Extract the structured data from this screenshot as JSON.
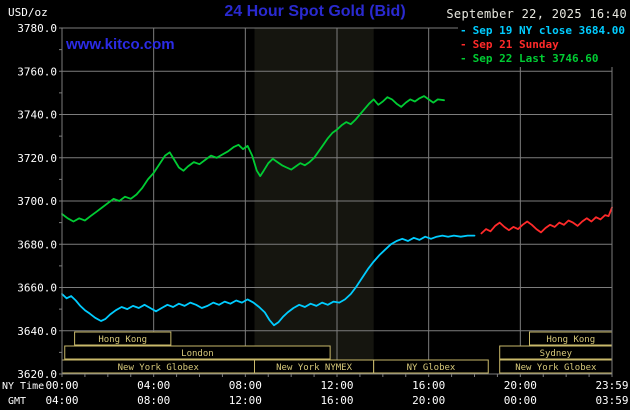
{
  "header": {
    "units": "USD/oz",
    "title": "24 Hour Spot Gold (Bid)",
    "datetime": "September 22, 2025 16:40",
    "watermark": "www.kitco.com"
  },
  "legend": {
    "marker": "-",
    "items": [
      {
        "label": "Sep 19 NY close 3684.00",
        "color": "#00ccff"
      },
      {
        "label": "Sep 21 Sunday",
        "color": "#ff2a2a"
      },
      {
        "label": "Sep 22 Last 3746.60",
        "color": "#00cc33"
      }
    ]
  },
  "colors": {
    "background": "#000000",
    "grid": "#7d7d7d",
    "axis_text": "#ffffff",
    "session_border": "#c9b96a",
    "session_text": "#d6c87a",
    "band": "#15150f"
  },
  "chart_data": {
    "type": "line",
    "title": "24 Hour Spot Gold (Bid)",
    "ylabel": "USD/oz",
    "ylim": [
      3620,
      3780
    ],
    "xlim_hours": [
      0,
      24
    ],
    "prev_ny_close": 3684.0,
    "last": 3746.6,
    "y_ticks": [
      3780,
      3760,
      3740,
      3720,
      3700,
      3680,
      3660,
      3640,
      3620
    ],
    "x_axis": {
      "ny_label": "NY Time",
      "gmt_label": "GMT",
      "ny_ticks": [
        {
          "hour": 0,
          "label": "00:00"
        },
        {
          "hour": 4,
          "label": "04:00"
        },
        {
          "hour": 8,
          "label": "08:00"
        },
        {
          "hour": 12,
          "label": "12:00"
        },
        {
          "hour": 16,
          "label": "16:00"
        },
        {
          "hour": 20,
          "label": "20:00"
        },
        {
          "hour": 24,
          "label": "23:59"
        }
      ],
      "gmt_ticks": [
        {
          "hour": 0,
          "label": "04:00"
        },
        {
          "hour": 4,
          "label": "08:00"
        },
        {
          "hour": 8,
          "label": "12:00"
        },
        {
          "hour": 12,
          "label": "16:00"
        },
        {
          "hour": 16,
          "label": "20:00"
        },
        {
          "hour": 20,
          "label": "00:00"
        },
        {
          "hour": 24,
          "label": "03:59"
        }
      ]
    },
    "nymex_band": {
      "start": 8.4,
      "end": 13.6
    },
    "sessions": [
      {
        "row": 0,
        "label": "Hong Kong",
        "start": 0.55,
        "end": 4.75
      },
      {
        "row": 0,
        "label": "Hong Kong",
        "start": 20.4,
        "end": 24
      },
      {
        "row": 1,
        "label": "London",
        "start": 0.12,
        "end": 11.7
      },
      {
        "row": 1,
        "label": "Sydney",
        "start": 19.1,
        "end": 24
      },
      {
        "row": 2,
        "label": "New York Globex",
        "start": 0,
        "end": 8.4
      },
      {
        "row": 2,
        "label": "New York NYMEX",
        "start": 8.4,
        "end": 13.6
      },
      {
        "row": 2,
        "label": "NY Globex",
        "start": 13.6,
        "end": 18.6
      },
      {
        "row": 2,
        "label": "New York Globex",
        "start": 19.1,
        "end": 24
      }
    ],
    "series": [
      {
        "id": "sep19-close",
        "name": "Sep 19 NY close",
        "color": "#00ccff",
        "points": [
          [
            0,
            3657
          ],
          [
            0.2,
            3655
          ],
          [
            0.4,
            3656
          ],
          [
            0.6,
            3654
          ],
          [
            0.8,
            3651.5
          ],
          [
            1,
            3649.5
          ],
          [
            1.2,
            3648
          ],
          [
            1.45,
            3646
          ],
          [
            1.7,
            3644.5
          ],
          [
            1.9,
            3645.5
          ],
          [
            2.1,
            3647.5
          ],
          [
            2.35,
            3649.5
          ],
          [
            2.6,
            3651
          ],
          [
            2.85,
            3650
          ],
          [
            3.1,
            3651.5
          ],
          [
            3.35,
            3650.5
          ],
          [
            3.6,
            3652
          ],
          [
            3.85,
            3650.5
          ],
          [
            4.1,
            3649
          ],
          [
            4.35,
            3650.5
          ],
          [
            4.6,
            3652
          ],
          [
            4.85,
            3651
          ],
          [
            5.1,
            3652.5
          ],
          [
            5.35,
            3651.5
          ],
          [
            5.6,
            3653
          ],
          [
            5.85,
            3652
          ],
          [
            6.1,
            3650.5
          ],
          [
            6.35,
            3651.5
          ],
          [
            6.6,
            3653
          ],
          [
            6.85,
            3652
          ],
          [
            7.1,
            3653.5
          ],
          [
            7.35,
            3652.5
          ],
          [
            7.6,
            3654
          ],
          [
            7.85,
            3653
          ],
          [
            8.1,
            3654.5
          ],
          [
            8.35,
            3653
          ],
          [
            8.6,
            3651
          ],
          [
            8.85,
            3648.5
          ],
          [
            9.05,
            3645
          ],
          [
            9.25,
            3642.5
          ],
          [
            9.45,
            3644
          ],
          [
            9.65,
            3646.5
          ],
          [
            9.85,
            3648.5
          ],
          [
            10.1,
            3650.5
          ],
          [
            10.35,
            3652
          ],
          [
            10.6,
            3651
          ],
          [
            10.85,
            3652.5
          ],
          [
            11.1,
            3651.5
          ],
          [
            11.35,
            3653
          ],
          [
            11.6,
            3652
          ],
          [
            11.85,
            3653.5
          ],
          [
            12.1,
            3653
          ],
          [
            12.35,
            3654.5
          ],
          [
            12.6,
            3657
          ],
          [
            12.85,
            3660.5
          ],
          [
            13.1,
            3664.5
          ],
          [
            13.35,
            3668.5
          ],
          [
            13.6,
            3672
          ],
          [
            13.85,
            3675
          ],
          [
            14.1,
            3677.5
          ],
          [
            14.35,
            3680
          ],
          [
            14.6,
            3681.5
          ],
          [
            14.85,
            3682.5
          ],
          [
            15.1,
            3681.5
          ],
          [
            15.35,
            3683
          ],
          [
            15.6,
            3682
          ],
          [
            15.85,
            3683.5
          ],
          [
            16.1,
            3682.5
          ],
          [
            16.35,
            3683.5
          ],
          [
            16.6,
            3684
          ],
          [
            16.85,
            3683.5
          ],
          [
            17.1,
            3684
          ],
          [
            17.4,
            3683.5
          ],
          [
            17.7,
            3684
          ],
          [
            18,
            3684
          ]
        ]
      },
      {
        "id": "sep21-sunday",
        "name": "Sep 21 Sunday",
        "color": "#ff2a2a",
        "points": [
          [
            18.3,
            3685
          ],
          [
            18.5,
            3687
          ],
          [
            18.7,
            3686
          ],
          [
            18.9,
            3688.5
          ],
          [
            19.1,
            3690
          ],
          [
            19.3,
            3688
          ],
          [
            19.5,
            3686.5
          ],
          [
            19.7,
            3688
          ],
          [
            19.9,
            3687
          ],
          [
            20.1,
            3689
          ],
          [
            20.3,
            3690.5
          ],
          [
            20.5,
            3689
          ],
          [
            20.7,
            3687
          ],
          [
            20.9,
            3685.5
          ],
          [
            21.1,
            3687.5
          ],
          [
            21.3,
            3689
          ],
          [
            21.5,
            3688
          ],
          [
            21.7,
            3690
          ],
          [
            21.9,
            3689
          ],
          [
            22.1,
            3691
          ],
          [
            22.3,
            3690
          ],
          [
            22.5,
            3688.5
          ],
          [
            22.7,
            3690.5
          ],
          [
            22.9,
            3692
          ],
          [
            23.1,
            3690.5
          ],
          [
            23.3,
            3692.5
          ],
          [
            23.5,
            3691.5
          ],
          [
            23.7,
            3693.5
          ],
          [
            23.85,
            3693
          ],
          [
            24,
            3697
          ]
        ]
      },
      {
        "id": "sep22-current",
        "name": "Sep 22 Last",
        "color": "#00cc33",
        "points": [
          [
            0,
            3694
          ],
          [
            0.25,
            3692
          ],
          [
            0.5,
            3690.5
          ],
          [
            0.75,
            3692
          ],
          [
            1,
            3691
          ],
          [
            1.25,
            3693
          ],
          [
            1.5,
            3695
          ],
          [
            1.75,
            3697
          ],
          [
            2,
            3699
          ],
          [
            2.25,
            3701
          ],
          [
            2.5,
            3700
          ],
          [
            2.75,
            3702
          ],
          [
            3,
            3701
          ],
          [
            3.25,
            3703
          ],
          [
            3.5,
            3706
          ],
          [
            3.75,
            3710
          ],
          [
            4,
            3713
          ],
          [
            4.25,
            3717
          ],
          [
            4.5,
            3721
          ],
          [
            4.7,
            3722.5
          ],
          [
            4.9,
            3719
          ],
          [
            5.1,
            3715.5
          ],
          [
            5.3,
            3714
          ],
          [
            5.5,
            3716
          ],
          [
            5.75,
            3718
          ],
          [
            6,
            3717
          ],
          [
            6.25,
            3719
          ],
          [
            6.5,
            3721
          ],
          [
            6.75,
            3720
          ],
          [
            7,
            3721.5
          ],
          [
            7.25,
            3723
          ],
          [
            7.5,
            3725
          ],
          [
            7.7,
            3726
          ],
          [
            7.9,
            3724
          ],
          [
            8.1,
            3725.5
          ],
          [
            8.3,
            3721
          ],
          [
            8.5,
            3714
          ],
          [
            8.65,
            3711.5
          ],
          [
            8.8,
            3714
          ],
          [
            9,
            3717.5
          ],
          [
            9.2,
            3719.5
          ],
          [
            9.4,
            3718
          ],
          [
            9.6,
            3716.5
          ],
          [
            9.8,
            3715.5
          ],
          [
            10,
            3714.5
          ],
          [
            10.2,
            3716
          ],
          [
            10.4,
            3717.5
          ],
          [
            10.6,
            3716.5
          ],
          [
            10.8,
            3718
          ],
          [
            11,
            3720
          ],
          [
            11.2,
            3723
          ],
          [
            11.4,
            3726
          ],
          [
            11.6,
            3729
          ],
          [
            11.8,
            3731.5
          ],
          [
            12,
            3733
          ],
          [
            12.2,
            3735
          ],
          [
            12.4,
            3736.5
          ],
          [
            12.6,
            3735.5
          ],
          [
            12.8,
            3737.5
          ],
          [
            13,
            3740
          ],
          [
            13.2,
            3742.5
          ],
          [
            13.4,
            3745
          ],
          [
            13.6,
            3747
          ],
          [
            13.8,
            3744.5
          ],
          [
            14,
            3746
          ],
          [
            14.2,
            3748
          ],
          [
            14.4,
            3747
          ],
          [
            14.6,
            3745
          ],
          [
            14.8,
            3743.5
          ],
          [
            15,
            3745.5
          ],
          [
            15.2,
            3747
          ],
          [
            15.4,
            3746
          ],
          [
            15.6,
            3747.5
          ],
          [
            15.8,
            3748.5
          ],
          [
            16,
            3747
          ],
          [
            16.2,
            3745.5
          ],
          [
            16.4,
            3747
          ],
          [
            16.67,
            3746.6
          ]
        ]
      }
    ]
  }
}
